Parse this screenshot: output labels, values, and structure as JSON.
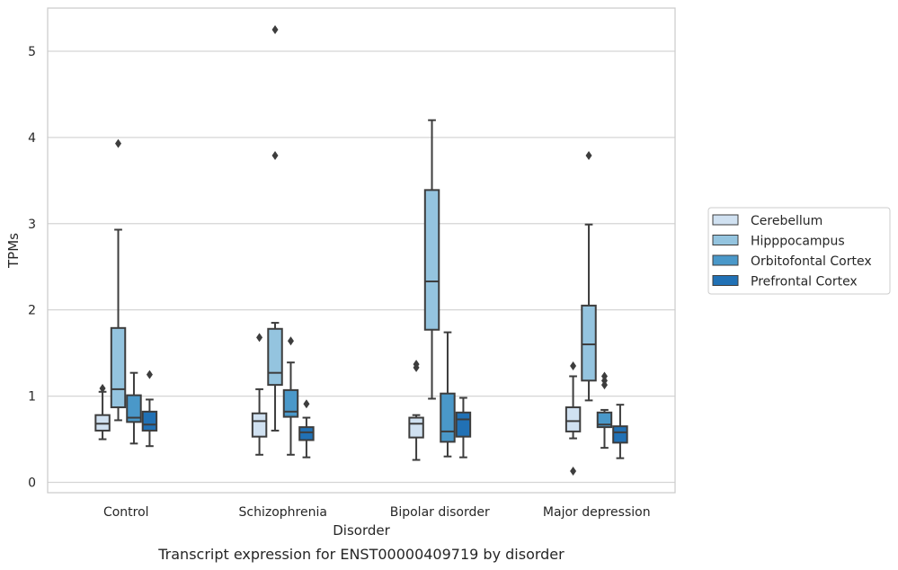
{
  "chart_data": {
    "type": "box",
    "caption": "Transcript expression for ENST00000409719 by disorder",
    "xlabel": "Disorder",
    "ylabel": "TPMs",
    "ylim": [
      -0.12,
      5.5
    ],
    "yticks": [
      0,
      1,
      2,
      3,
      4,
      5
    ],
    "grid": "horizontal",
    "legend_position": "right",
    "categories": [
      "Control",
      "Schizophrenia",
      "Bipolar disorder",
      "Major depression"
    ],
    "series": [
      {
        "name": "Cerebellum",
        "color": "#d0e1f1",
        "boxes": [
          {
            "whislo": 0.5,
            "q1": 0.6,
            "med": 0.68,
            "q3": 0.78,
            "whishi": 1.05,
            "fliers": [
              1.09
            ]
          },
          {
            "whislo": 0.32,
            "q1": 0.53,
            "med": 0.71,
            "q3": 0.8,
            "whishi": 1.08,
            "fliers": [
              1.68
            ]
          },
          {
            "whislo": 0.26,
            "q1": 0.52,
            "med": 0.68,
            "q3": 0.75,
            "whishi": 0.78,
            "fliers": [
              1.33,
              1.37
            ]
          },
          {
            "whislo": 0.51,
            "q1": 0.59,
            "med": 0.71,
            "q3": 0.87,
            "whishi": 1.23,
            "fliers": [
              1.35,
              0.13
            ]
          }
        ]
      },
      {
        "name": "Hipppocampus",
        "color": "#94c4df",
        "boxes": [
          {
            "whislo": 0.72,
            "q1": 0.87,
            "med": 1.08,
            "q3": 1.79,
            "whishi": 2.93,
            "fliers": [
              3.93
            ]
          },
          {
            "whislo": 0.6,
            "q1": 1.13,
            "med": 1.27,
            "q3": 1.78,
            "whishi": 1.85,
            "fliers": [
              3.79,
              5.25
            ]
          },
          {
            "whislo": 0.97,
            "q1": 1.77,
            "med": 2.33,
            "q3": 3.39,
            "whishi": 4.2,
            "fliers": []
          },
          {
            "whislo": 0.95,
            "q1": 1.18,
            "med": 1.6,
            "q3": 2.05,
            "whishi": 2.99,
            "fliers": [
              3.79
            ]
          }
        ]
      },
      {
        "name": "Orbitofontal Cortex",
        "color": "#4a98c9",
        "boxes": [
          {
            "whislo": 0.45,
            "q1": 0.7,
            "med": 0.75,
            "q3": 1.01,
            "whishi": 1.27,
            "fliers": []
          },
          {
            "whislo": 0.32,
            "q1": 0.76,
            "med": 0.82,
            "q3": 1.07,
            "whishi": 1.39,
            "fliers": [
              1.64
            ]
          },
          {
            "whislo": 0.3,
            "q1": 0.47,
            "med": 0.59,
            "q3": 1.03,
            "whishi": 1.74,
            "fliers": []
          },
          {
            "whislo": 0.4,
            "q1": 0.64,
            "med": 0.67,
            "q3": 0.81,
            "whishi": 0.84,
            "fliers": [
              1.13,
              1.18,
              1.23
            ]
          }
        ]
      },
      {
        "name": "Prefrontal Cortex",
        "color": "#2171b5",
        "boxes": [
          {
            "whislo": 0.42,
            "q1": 0.6,
            "med": 0.67,
            "q3": 0.82,
            "whishi": 0.96,
            "fliers": [
              1.25
            ]
          },
          {
            "whislo": 0.29,
            "q1": 0.49,
            "med": 0.58,
            "q3": 0.64,
            "whishi": 0.75,
            "fliers": [
              0.91
            ]
          },
          {
            "whislo": 0.29,
            "q1": 0.53,
            "med": 0.73,
            "q3": 0.81,
            "whishi": 0.98,
            "fliers": []
          },
          {
            "whislo": 0.28,
            "q1": 0.46,
            "med": 0.58,
            "q3": 0.65,
            "whishi": 0.9,
            "fliers": []
          }
        ]
      }
    ]
  }
}
